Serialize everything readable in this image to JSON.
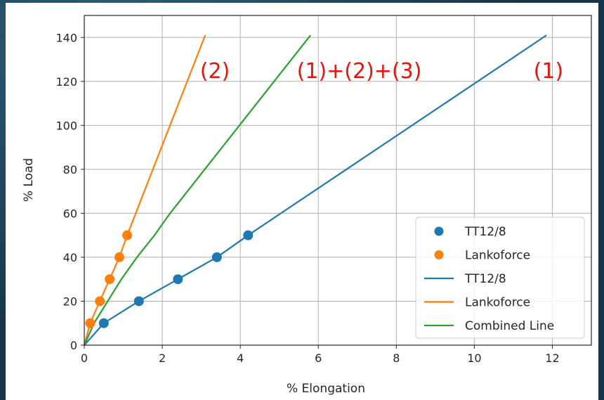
{
  "colors": {
    "tt12_8": "#1f77b4",
    "lankoforce": "#ff7f0e",
    "combined": "#2ca02c",
    "annotation": "#e8140c",
    "grid": "#b0b0b0",
    "background_outer": "#173449"
  },
  "chart_data": {
    "type": "line",
    "title": "",
    "xlabel": "% Elongation",
    "ylabel": "% Load",
    "xlim": [
      0,
      13
    ],
    "ylim": [
      0,
      150
    ],
    "xticks": [
      0,
      2,
      4,
      6,
      8,
      10,
      12
    ],
    "yticks": [
      0,
      20,
      40,
      60,
      80,
      100,
      120,
      140
    ],
    "grid": true,
    "legend_position": "lower-right",
    "series": [
      {
        "name": "TT12/8",
        "kind": "scatter",
        "color": "#1f77b4",
        "x": [
          0.5,
          1.4,
          2.4,
          3.4,
          4.2
        ],
        "y": [
          10,
          20,
          30,
          40,
          50
        ]
      },
      {
        "name": "Lankoforce",
        "kind": "scatter",
        "color": "#ff7f0e",
        "x": [
          0.15,
          0.4,
          0.65,
          0.9,
          1.1
        ],
        "y": [
          10,
          20,
          30,
          40,
          50
        ]
      },
      {
        "name": "TT12/8",
        "kind": "line",
        "color": "#1f77b4",
        "x": [
          0,
          0.5,
          1.4,
          2.4,
          3.4,
          4.2,
          11.85
        ],
        "y": [
          0,
          10,
          20,
          30,
          40,
          50,
          141
        ]
      },
      {
        "name": "Lankoforce",
        "kind": "line",
        "color": "#ff7f0e",
        "x": [
          0,
          0.15,
          0.4,
          0.65,
          0.9,
          1.1,
          3.1
        ],
        "y": [
          0,
          10,
          20,
          30,
          40,
          50,
          141
        ]
      },
      {
        "name": "Combined Line",
        "kind": "line",
        "color": "#2ca02c",
        "x": [
          0,
          0.25,
          0.6,
          0.95,
          1.35,
          1.8,
          2.2,
          5.8
        ],
        "y": [
          0,
          10,
          20,
          30,
          40,
          50,
          60,
          141
        ]
      }
    ],
    "annotations": [
      {
        "text": "(2)",
        "x": 3.35,
        "y": 125
      },
      {
        "text": "(1)+(2)+(3)",
        "x": 7.05,
        "y": 125
      },
      {
        "text": "(1)",
        "x": 11.9,
        "y": 125
      }
    ]
  }
}
